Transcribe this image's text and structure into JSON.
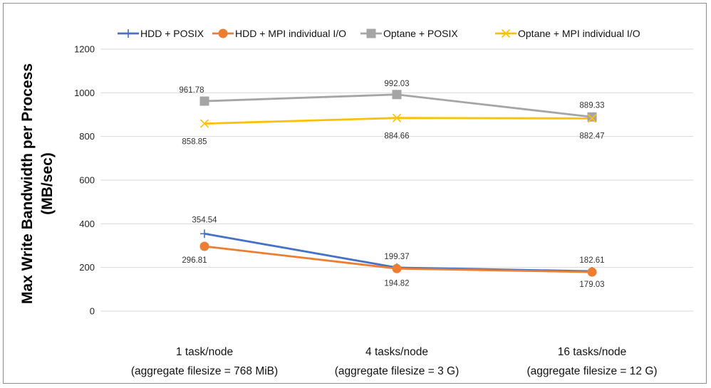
{
  "chart_data": {
    "type": "line",
    "title": "",
    "xlabel": "",
    "ylabel_lines": [
      "Max Write Bandwidth per Process",
      "(MB/sec)"
    ],
    "ylim": [
      0,
      1200
    ],
    "yticks": [
      0,
      200,
      400,
      600,
      800,
      1000,
      1200
    ],
    "grid": true,
    "legend_position": "top",
    "categories": [
      {
        "line1": "1 task/node",
        "line2": "(aggregate filesize = 768 MiB)"
      },
      {
        "line1": "4 tasks/node",
        "line2": "(aggregate filesize = 3 G)"
      },
      {
        "line1": "16 tasks/node",
        "line2": "(aggregate filesize = 12 G)"
      }
    ],
    "series": [
      {
        "name": "HDD + POSIX",
        "color": "#4472C4",
        "marker": "plus",
        "values": [
          354.54,
          199.37,
          182.61
        ],
        "labels": [
          "354.54",
          "199.37",
          "182.61"
        ]
      },
      {
        "name": "HDD + MPI individual I/O",
        "color": "#ED7D31",
        "marker": "circle",
        "values": [
          296.81,
          194.82,
          179.03
        ],
        "labels": [
          "296.81",
          "194.82",
          "179.03"
        ]
      },
      {
        "name": "Optane + POSIX",
        "color": "#A5A5A5",
        "marker": "square",
        "values": [
          961.78,
          992.03,
          889.33
        ],
        "labels": [
          "961.78",
          "992.03",
          "889.33"
        ]
      },
      {
        "name": "Optane + MPI individual I/O",
        "color": "#FFC000",
        "marker": "x",
        "values": [
          858.85,
          884.66,
          882.47
        ],
        "labels": [
          "858.85",
          "884.66",
          "882.47"
        ]
      }
    ]
  }
}
